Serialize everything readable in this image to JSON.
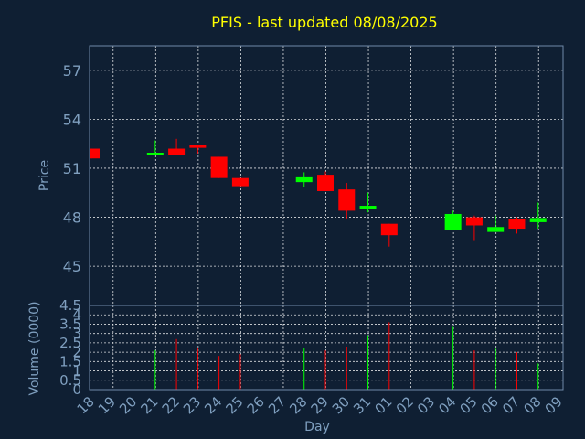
{
  "chart_data": {
    "type": "candlestick",
    "title": "PFIS - last updated 08/08/2025",
    "xlabel": "Day",
    "price_panel": {
      "ylabel": "Price",
      "ylim": [
        42.6,
        58.5
      ],
      "yticks": [
        "57",
        "54",
        "51",
        "48",
        "45"
      ],
      "ytick_values": [
        57,
        54,
        51,
        48,
        45
      ],
      "grid": true
    },
    "volume_panel": {
      "ylabel": "Volume (0000)",
      "ylim": [
        0,
        4.5
      ],
      "yticks": [
        "4.5",
        "4",
        "3.5",
        "3",
        "2.5",
        "2",
        "1.5",
        "1",
        "0.5",
        "0"
      ],
      "ytick_values": [
        4.5,
        4,
        3.5,
        3,
        2.5,
        2,
        1.5,
        1,
        0.5,
        0
      ],
      "grid": true
    },
    "x_tick_labels": [
      "18",
      "19",
      "20",
      "21",
      "22",
      "23",
      "24",
      "25",
      "26",
      "27",
      "28",
      "29",
      "30",
      "31",
      "01",
      "02",
      "03",
      "04",
      "05",
      "06",
      "07",
      "08",
      "09"
    ],
    "colors": {
      "up": "#00ff00",
      "down": "#ff0000",
      "background": "#0f1f33",
      "title": "#ffff00",
      "axis_text": "#7f9fbf"
    },
    "candles": [
      {
        "day": "18",
        "open": 52.2,
        "high": 52.2,
        "low": 51.6,
        "close": 51.6,
        "volume": 0
      },
      {
        "day": "21",
        "open": 51.9,
        "high": 52.7,
        "low": 51.8,
        "close": 51.95,
        "volume": 2.1
      },
      {
        "day": "22",
        "open": 52.2,
        "high": 52.8,
        "low": 51.8,
        "close": 51.8,
        "volume": 2.7
      },
      {
        "day": "23",
        "open": 52.4,
        "high": 52.4,
        "low": 51.9,
        "close": 52.25,
        "volume": 2.2
      },
      {
        "day": "24",
        "open": 51.7,
        "high": 51.7,
        "low": 50.4,
        "close": 50.4,
        "volume": 1.8
      },
      {
        "day": "25",
        "open": 50.4,
        "high": 50.4,
        "low": 49.9,
        "close": 49.9,
        "volume": 1.9
      },
      {
        "day": "28",
        "open": 50.15,
        "high": 50.75,
        "low": 49.85,
        "close": 50.5,
        "volume": 2.2
      },
      {
        "day": "29",
        "open": 50.6,
        "high": 50.8,
        "low": 49.6,
        "close": 49.6,
        "volume": 2.1
      },
      {
        "day": "30",
        "open": 49.7,
        "high": 50.1,
        "low": 47.9,
        "close": 48.4,
        "volume": 2.3
      },
      {
        "day": "31",
        "open": 48.5,
        "high": 49.5,
        "low": 48.3,
        "close": 48.7,
        "volume": 2.9
      },
      {
        "day": "01",
        "open": 47.6,
        "high": 47.6,
        "low": 46.2,
        "close": 46.9,
        "volume": 3.6
      },
      {
        "day": "04",
        "open": 47.2,
        "high": 48.4,
        "low": 47.2,
        "close": 48.2,
        "volume": 3.4
      },
      {
        "day": "05",
        "open": 48.0,
        "high": 48.1,
        "low": 46.6,
        "close": 47.5,
        "volume": 2.1
      },
      {
        "day": "06",
        "open": 47.1,
        "high": 48.1,
        "low": 47.1,
        "close": 47.4,
        "volume": 2.2
      },
      {
        "day": "07",
        "open": 47.9,
        "high": 48.0,
        "low": 47.0,
        "close": 47.3,
        "volume": 2.0
      },
      {
        "day": "08",
        "open": 47.7,
        "high": 48.9,
        "low": 47.3,
        "close": 47.95,
        "volume": 1.4
      }
    ]
  }
}
